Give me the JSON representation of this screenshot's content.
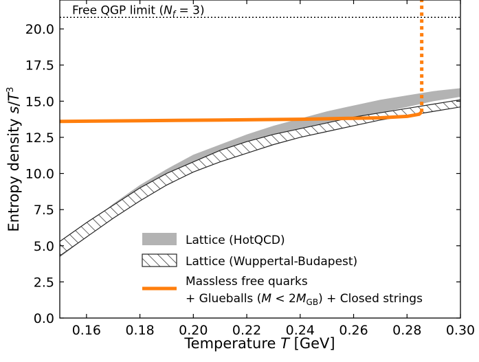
{
  "chart_data": {
    "type": "line",
    "xlabel": "Temperature T [GeV]",
    "ylabel": "Entropy density s/T³",
    "xlim": [
      0.15,
      0.3
    ],
    "ylim": [
      0.0,
      22.0
    ],
    "x_ticks": [
      "0.16",
      "0.18",
      "0.20",
      "0.22",
      "0.24",
      "0.26",
      "0.28",
      "0.30"
    ],
    "y_ticks": [
      "0.0",
      "2.5",
      "5.0",
      "7.5",
      "10.0",
      "12.5",
      "15.0",
      "17.5",
      "20.0"
    ],
    "grid": false,
    "legend_position": "lower-right",
    "reference_line": {
      "label": "Free QGP limit (N_f = 3)",
      "y": 20.8,
      "style": "dotted"
    },
    "series": [
      {
        "name": "Lattice (HotQCD)",
        "kind": "band",
        "color": "#b3b3b3",
        "x": [
          0.15,
          0.16,
          0.17,
          0.18,
          0.19,
          0.2,
          0.21,
          0.22,
          0.23,
          0.24,
          0.25,
          0.26,
          0.27,
          0.28,
          0.29,
          0.3
        ],
        "lower": [
          4.2,
          5.6,
          7.0,
          8.3,
          9.4,
          10.4,
          11.1,
          11.8,
          12.4,
          12.9,
          13.4,
          13.8,
          14.2,
          14.6,
          15.0,
          15.3
        ],
        "upper": [
          5.0,
          6.4,
          7.9,
          9.2,
          10.3,
          11.3,
          12.0,
          12.7,
          13.3,
          13.8,
          14.3,
          14.7,
          15.1,
          15.4,
          15.7,
          15.9
        ]
      },
      {
        "name": "Lattice (Wuppertal-Budapest)",
        "kind": "hatched-band",
        "color": "#333333",
        "x": [
          0.15,
          0.16,
          0.17,
          0.18,
          0.19,
          0.2,
          0.21,
          0.22,
          0.23,
          0.24,
          0.25,
          0.26,
          0.27,
          0.28,
          0.29,
          0.3
        ],
        "lower": [
          4.3,
          5.6,
          6.9,
          8.1,
          9.2,
          10.1,
          10.8,
          11.4,
          12.0,
          12.5,
          12.9,
          13.3,
          13.7,
          14.0,
          14.3,
          14.6
        ],
        "upper": [
          5.3,
          6.6,
          7.8,
          9.0,
          10.0,
          10.8,
          11.6,
          12.2,
          12.7,
          13.1,
          13.5,
          13.9,
          14.2,
          14.5,
          14.8,
          15.1
        ]
      },
      {
        "name": "Massless free quarks + Glueballs (M < 2M_GB) + Closed strings",
        "kind": "line",
        "color": "#ff7f0e",
        "x": [
          0.15,
          0.18,
          0.21,
          0.24,
          0.27,
          0.28,
          0.2845,
          0.2855
        ],
        "y": [
          13.6,
          13.65,
          13.7,
          13.75,
          13.85,
          13.95,
          14.1,
          14.25
        ],
        "vertical_jump": {
          "x": 0.2855,
          "y_from": 14.25,
          "y_to": 22.0,
          "style": "dotted"
        }
      }
    ],
    "legend": [
      {
        "label": "Lattice (HotQCD)",
        "swatch": "band"
      },
      {
        "label": "Lattice (Wuppertal-Budapest)",
        "swatch": "hatched"
      },
      {
        "label_line1": "Massless free quarks",
        "label_line2": "+ Glueballs (M < 2M_GB) + Closed strings",
        "swatch": "line"
      }
    ]
  }
}
